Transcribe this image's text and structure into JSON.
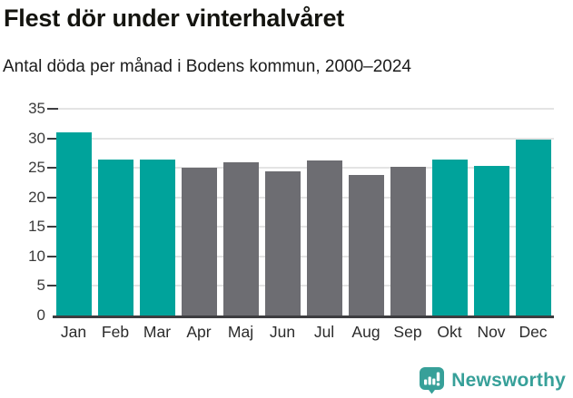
{
  "title": "Flest dör under vinterhalvåret",
  "subtitle": "Antal döda per månad i Bodens kommun, 2000–2024",
  "branding": {
    "logo_text": "Newsworthy",
    "logo_icon": "newsworthy-speech-bubble-bar-chart-icon",
    "brand_color": "#37a099"
  },
  "colors": {
    "highlight_teal": "#00a39b",
    "muted_gray": "#6d6d72",
    "gridline": "#e4e4e4",
    "axis_line": "#3d3d40",
    "title_text": "#14140f"
  },
  "chart_data": {
    "type": "bar",
    "title": "Flest dör under vinterhalvåret",
    "subtitle": "Antal döda per månad i Bodens kommun, 2000–2024",
    "categories": [
      "Jan",
      "Feb",
      "Mar",
      "Apr",
      "Maj",
      "Jun",
      "Jul",
      "Aug",
      "Sep",
      "Okt",
      "Nov",
      "Dec"
    ],
    "values": [
      31.0,
      26.4,
      26.4,
      25.1,
      26.0,
      24.4,
      26.3,
      23.8,
      25.2,
      26.4,
      25.4,
      29.8
    ],
    "bar_colors": [
      "#00a39b",
      "#00a39b",
      "#00a39b",
      "#6d6d72",
      "#6d6d72",
      "#6d6d72",
      "#6d6d72",
      "#6d6d72",
      "#6d6d72",
      "#00a39b",
      "#00a39b",
      "#00a39b"
    ],
    "highlighted_months": [
      "Jan",
      "Feb",
      "Mar",
      "Okt",
      "Nov",
      "Dec"
    ],
    "xlabel": "",
    "ylabel": "",
    "ylim": [
      0,
      35
    ],
    "yticks": [
      0,
      5,
      10,
      15,
      20,
      25,
      30,
      35
    ],
    "grid": true,
    "legend": false
  }
}
